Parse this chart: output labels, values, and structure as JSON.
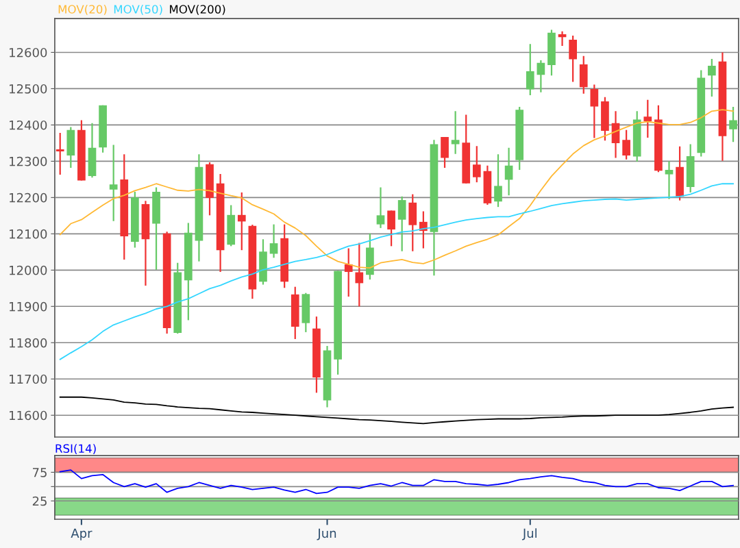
{
  "chart_data": [
    {
      "type": "candlestick",
      "ohlc": [
        [
          12333,
          12378,
          12263,
          12327
        ],
        [
          12316,
          12394,
          12282,
          12386
        ],
        [
          12386,
          12413,
          12247,
          12247
        ],
        [
          12259,
          12405,
          12255,
          12337
        ],
        [
          12338,
          12454,
          12324,
          12454
        ],
        [
          12222,
          12345,
          12135,
          12236
        ],
        [
          12250,
          12319,
          12029,
          12093
        ],
        [
          12078,
          12216,
          12062,
          12200
        ],
        [
          12182,
          12191,
          11957,
          12085
        ],
        [
          12128,
          12228,
          12001,
          12216
        ],
        [
          12101,
          12106,
          11825,
          11840
        ],
        [
          11827,
          12020,
          11825,
          11994
        ],
        [
          11972,
          12130,
          11862,
          12103
        ],
        [
          12081,
          12319,
          12024,
          12284
        ],
        [
          12292,
          12297,
          12151,
          12199
        ],
        [
          12239,
          12265,
          11995,
          12055
        ],
        [
          12070,
          12179,
          12066,
          12152
        ],
        [
          12152,
          12214,
          12055,
          12134
        ],
        [
          12122,
          12125,
          11921,
          11947
        ],
        [
          11968,
          12085,
          11960,
          12051
        ],
        [
          12045,
          12126,
          12034,
          12074
        ],
        [
          12088,
          12126,
          11951,
          11968
        ],
        [
          11933,
          11954,
          11810,
          11844
        ],
        [
          11854,
          11937,
          11829,
          11934
        ],
        [
          11839,
          11872,
          11662,
          11704
        ],
        [
          11641,
          11791,
          11622,
          11779
        ],
        [
          11754,
          11998,
          11712,
          11998
        ],
        [
          12016,
          12060,
          11927,
          11995
        ],
        [
          11994,
          12075,
          11900,
          11964
        ],
        [
          11987,
          12101,
          11974,
          12062
        ],
        [
          12126,
          12228,
          12116,
          12151
        ],
        [
          12164,
          12164,
          12066,
          12112
        ],
        [
          12139,
          12203,
          12052,
          12193
        ],
        [
          12186,
          12209,
          12052,
          12124
        ],
        [
          12133,
          12162,
          12060,
          12108
        ],
        [
          12105,
          12359,
          11985,
          12347
        ],
        [
          12367,
          12367,
          12282,
          12309
        ],
        [
          12347,
          12438,
          12320,
          12359
        ],
        [
          12351,
          12428,
          12239,
          12239
        ],
        [
          12291,
          12342,
          12242,
          12256
        ],
        [
          12273,
          12288,
          12180,
          12184
        ],
        [
          12189,
          12319,
          12174,
          12232
        ],
        [
          12249,
          12337,
          12206,
          12288
        ],
        [
          12303,
          12450,
          12276,
          12442
        ],
        [
          12498,
          12623,
          12482,
          12548
        ],
        [
          12538,
          12578,
          12490,
          12571
        ],
        [
          12565,
          12662,
          12536,
          12654
        ],
        [
          12650,
          12658,
          12618,
          12642
        ],
        [
          12635,
          12646,
          12519,
          12581
        ],
        [
          12567,
          12590,
          12486,
          12504
        ],
        [
          12499,
          12511,
          12364,
          12451
        ],
        [
          12465,
          12477,
          12357,
          12384
        ],
        [
          12405,
          12438,
          12309,
          12350
        ],
        [
          12359,
          12386,
          12305,
          12316
        ],
        [
          12313,
          12438,
          12299,
          12415
        ],
        [
          12423,
          12469,
          12365,
          12410
        ],
        [
          12415,
          12454,
          12270,
          12274
        ],
        [
          12264,
          12300,
          12196,
          12276
        ],
        [
          12284,
          12341,
          12192,
          12203
        ],
        [
          12229,
          12347,
          12214,
          12314
        ],
        [
          12323,
          12551,
          12313,
          12530
        ],
        [
          12536,
          12582,
          12478,
          12563
        ],
        [
          12575,
          12600,
          12301,
          12369
        ],
        [
          12388,
          12450,
          12353,
          12413
        ]
      ],
      "colors": [
        "#f03232",
        "#66c966",
        "#f03232",
        "#66c966",
        "#66c966",
        "#66c966",
        "#f03232",
        "#66c966",
        "#f03232",
        "#66c966",
        "#f03232",
        "#66c966",
        "#66c966",
        "#66c966",
        "#f03232",
        "#f03232",
        "#66c966",
        "#f03232",
        "#f03232",
        "#66c966",
        "#66c966",
        "#f03232",
        "#f03232",
        "#66c966",
        "#f03232",
        "#66c966",
        "#66c966",
        "#f03232",
        "#f03232",
        "#66c966",
        "#66c966",
        "#f03232",
        "#66c966",
        "#f03232",
        "#f03232",
        "#66c966",
        "#f03232",
        "#66c966",
        "#f03232",
        "#f03232",
        "#f03232",
        "#66c966",
        "#66c966",
        "#66c966",
        "#66c966",
        "#66c966",
        "#66c966",
        "#f03232",
        "#f03232",
        "#f03232",
        "#f03232",
        "#f03232",
        "#f03232",
        "#f03232",
        "#66c966",
        "#f03232",
        "#f03232",
        "#66c966",
        "#f03232",
        "#66c966",
        "#66c966",
        "#66c966",
        "#f03232",
        "#66c966"
      ],
      "series": [
        {
          "name": "MOV(20)",
          "type": "line",
          "color": "#ffb833",
          "values": [
            12098,
            12128,
            12139,
            12159,
            12179,
            12197,
            12206,
            12219,
            12228,
            12238,
            12229,
            12220,
            12218,
            12222,
            12219,
            12212,
            12205,
            12199,
            12180,
            12168,
            12155,
            12132,
            12116,
            12095,
            12066,
            12039,
            12024,
            12016,
            12008,
            12006,
            12020,
            12025,
            12029,
            12021,
            12018,
            12028,
            12041,
            12053,
            12066,
            12076,
            12085,
            12097,
            12120,
            12142,
            12178,
            12220,
            12259,
            12290,
            12320,
            12343,
            12359,
            12370,
            12382,
            12394,
            12405,
            12409,
            12405,
            12401,
            12401,
            12407,
            12420,
            12438,
            12442,
            12438
          ]
        },
        {
          "name": "MOV(50)",
          "type": "line",
          "color": "#33d6ff",
          "values": [
            11754,
            11772,
            11789,
            11808,
            11831,
            11849,
            11860,
            11871,
            11881,
            11893,
            11900,
            11912,
            11921,
            11935,
            11949,
            11958,
            11970,
            11981,
            11989,
            12001,
            12008,
            12016,
            12024,
            12029,
            12035,
            12043,
            12055,
            12066,
            12072,
            12081,
            12091,
            12098,
            12105,
            12108,
            12114,
            12118,
            12125,
            12132,
            12138,
            12142,
            12145,
            12147,
            12147,
            12155,
            12162,
            12170,
            12178,
            12183,
            12187,
            12191,
            12193,
            12195,
            12196,
            12193,
            12195,
            12197,
            12199,
            12201,
            12203,
            12209,
            12220,
            12232,
            12238,
            12238
          ]
        },
        {
          "name": "MOV(200)",
          "type": "line",
          "color": "#000000",
          "values": [
            11650,
            11650,
            11650,
            11648,
            11645,
            11642,
            11636,
            11634,
            11631,
            11630,
            11626,
            11623,
            11621,
            11619,
            11618,
            11615,
            11612,
            11609,
            11608,
            11606,
            11604,
            11602,
            11600,
            11598,
            11596,
            11594,
            11592,
            11590,
            11588,
            11587,
            11585,
            11583,
            11581,
            11579,
            11577,
            11580,
            11582,
            11584,
            11586,
            11588,
            11589,
            11590,
            11590,
            11590,
            11591,
            11593,
            11594,
            11595,
            11597,
            11598,
            11598,
            11599,
            11600,
            11600,
            11600,
            11600,
            11600,
            11602,
            11605,
            11608,
            11612,
            11617,
            11620,
            11622
          ]
        }
      ],
      "ylim": [
        11540,
        12693
      ],
      "yticks": [
        11600,
        11700,
        11800,
        11900,
        12000,
        12100,
        12200,
        12300,
        12400,
        12500,
        12600
      ],
      "grid": "y",
      "legend": "top left",
      "tick_labels": "y"
    },
    {
      "type": "line",
      "title": "RSI(14)",
      "categories": [
        null,
        null,
        "Apr",
        null,
        null,
        null,
        null,
        null,
        null,
        null,
        null,
        null,
        null,
        null,
        null,
        null,
        null,
        null,
        null,
        null,
        null,
        null,
        null,
        null,
        null,
        "Jun",
        null,
        null,
        null,
        null,
        null,
        null,
        null,
        null,
        null,
        null,
        null,
        null,
        null,
        null,
        null,
        null,
        null,
        null,
        "Jul",
        null,
        null,
        null,
        null,
        null,
        null,
        null,
        null,
        null,
        null,
        null,
        null,
        null,
        null,
        null,
        null,
        null,
        null,
        null
      ],
      "series": [
        {
          "color": "#0000ff",
          "values": [
            76,
            79,
            64,
            69,
            71,
            57,
            50,
            55,
            49,
            55,
            40,
            47,
            50,
            57,
            52,
            47,
            52,
            49,
            45,
            47,
            49,
            44,
            40,
            45,
            38,
            40,
            49,
            49,
            47,
            52,
            55,
            51,
            57,
            52,
            52,
            62,
            59,
            59,
            55,
            54,
            52,
            54,
            57,
            62,
            64,
            67,
            69,
            66,
            64,
            59,
            57,
            52,
            50,
            50,
            55,
            55,
            48,
            47,
            43,
            51,
            59,
            59,
            50,
            52
          ]
        }
      ],
      "bands": [
        {
          "axis": "y",
          "from": 75,
          "to": 100,
          "color": "#ff8888"
        },
        {
          "axis": "y",
          "from": 0,
          "to": 30,
          "color": "#88d888"
        }
      ],
      "ylim": [
        -7,
        104
      ],
      "yticks": [
        25,
        {
          "value": 50,
          "label": null
        },
        75
      ],
      "grid": "y"
    }
  ]
}
